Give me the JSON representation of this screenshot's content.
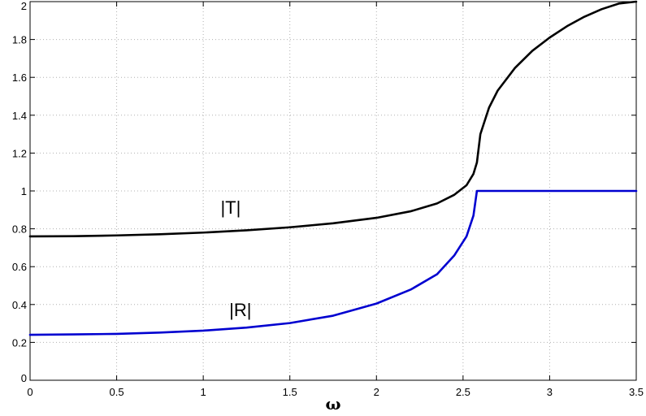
{
  "chart_data": {
    "type": "line",
    "title": "",
    "xlabel": "ω",
    "ylabel": "",
    "xlim": [
      0,
      3.5
    ],
    "ylim": [
      0,
      2
    ],
    "grid": true,
    "x_ticks": [
      0,
      0.5,
      1,
      1.5,
      2,
      2.5,
      3,
      3.5
    ],
    "x_tick_labels": [
      "0",
      "0.5",
      "1",
      "1.5",
      "2",
      "2.5",
      "3",
      "3.5"
    ],
    "y_ticks": [
      0,
      0.2,
      0.4,
      0.6,
      0.8,
      1,
      1.2,
      1.4,
      1.6,
      1.8,
      2
    ],
    "y_tick_labels": [
      "0",
      "0.2",
      "0.4",
      "0.6",
      "0.8",
      "1",
      "1.2",
      "1.4",
      "1.6",
      "1.8",
      "2"
    ],
    "series": [
      {
        "label": "|T|",
        "color": "#000000",
        "label_at": [
          1.1,
          0.88
        ],
        "x": [
          0,
          0.25,
          0.5,
          0.75,
          1.0,
          1.25,
          1.5,
          1.75,
          2.0,
          2.2,
          2.35,
          2.45,
          2.52,
          2.56,
          2.58,
          2.6,
          2.65,
          2.7,
          2.8,
          2.9,
          3.0,
          3.1,
          3.2,
          3.3,
          3.4,
          3.5
        ],
        "y": [
          0.76,
          0.761,
          0.765,
          0.771,
          0.78,
          0.792,
          0.808,
          0.829,
          0.858,
          0.893,
          0.934,
          0.98,
          1.03,
          1.09,
          1.15,
          1.3,
          1.44,
          1.53,
          1.65,
          1.74,
          1.81,
          1.87,
          1.92,
          1.96,
          1.99,
          2.0
        ]
      },
      {
        "label": "|R|",
        "color": "#0000d0",
        "label_at": [
          1.15,
          0.34
        ],
        "x": [
          0,
          0.25,
          0.5,
          0.75,
          1.0,
          1.25,
          1.5,
          1.75,
          2.0,
          2.2,
          2.35,
          2.45,
          2.52,
          2.56,
          2.58,
          2.6,
          3.0,
          3.5
        ],
        "y": [
          0.24,
          0.242,
          0.245,
          0.252,
          0.262,
          0.278,
          0.302,
          0.341,
          0.405,
          0.48,
          0.56,
          0.66,
          0.76,
          0.87,
          1.0,
          1.0,
          1.0,
          1.0
        ]
      }
    ]
  }
}
